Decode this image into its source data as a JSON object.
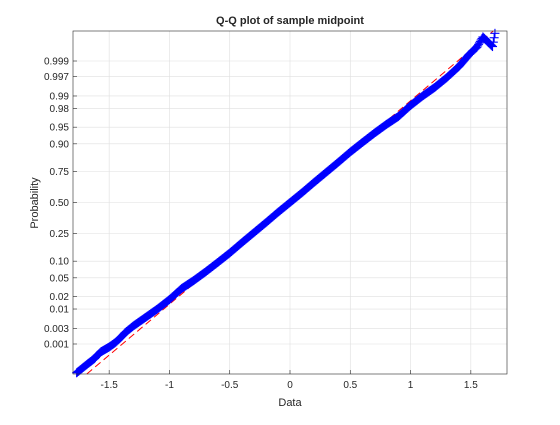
{
  "chart_data": {
    "type": "scatter",
    "title": "Q-Q plot  of sample midpoint",
    "xlabel": "Data",
    "ylabel": "Probability",
    "xlim": [
      -1.8,
      1.8
    ],
    "x_ticks": [
      -1.5,
      -1,
      -0.5,
      0,
      0.5,
      1,
      1.5
    ],
    "x_tick_labels": [
      "-1.5",
      "-1",
      "-0.5",
      "0",
      "0.5",
      "1",
      "1.5"
    ],
    "y_scale": "normal probability",
    "ylim": [
      9e-05,
      0.99991
    ],
    "y_ticks": [
      0.001,
      0.003,
      0.01,
      0.02,
      0.05,
      0.1,
      0.25,
      0.5,
      0.75,
      0.9,
      0.95,
      0.98,
      0.99,
      0.997,
      0.999
    ],
    "y_tick_labels": [
      "0.001",
      "0.003",
      "0.01",
      "0.02",
      "0.05",
      "0.10",
      "0.25",
      "0.50",
      "0.75",
      "0.90",
      "0.95",
      "0.98",
      "0.99",
      "0.997",
      "0.999"
    ],
    "grid": true,
    "marker": "+",
    "marker_color": "#0000ff",
    "reference_line": {
      "style": "dashed",
      "color": "#ff0000",
      "mean": 0,
      "sd": 0.45
    },
    "series": [
      {
        "points": [
          {
            "x": -1.77,
            "p": 0.0001
          },
          {
            "x": -1.68,
            "p": 0.00021
          },
          {
            "x": -1.62,
            "p": 0.00033
          },
          {
            "x": -1.6,
            "p": 0.00042
          },
          {
            "x": -1.57,
            "p": 0.00055
          },
          {
            "x": -1.5,
            "p": 0.0008
          },
          {
            "x": -1.45,
            "p": 0.0011
          },
          {
            "x": -1.42,
            "p": 0.0014
          },
          {
            "x": -1.39,
            "p": 0.0018
          },
          {
            "x": -1.37,
            "p": 0.0022
          },
          {
            "x": -1.3,
            "p": 0.0035
          },
          {
            "x": -1.2,
            "p": 0.006
          },
          {
            "x": -1.1,
            "p": 0.01
          },
          {
            "x": -1.0,
            "p": 0.017
          },
          {
            "x": -0.9,
            "p": 0.03
          },
          {
            "x": -0.8,
            "p": 0.044
          },
          {
            "x": -0.7,
            "p": 0.065
          },
          {
            "x": -0.6,
            "p": 0.095
          },
          {
            "x": -0.5,
            "p": 0.135
          },
          {
            "x": -0.4,
            "p": 0.19
          },
          {
            "x": -0.3,
            "p": 0.255
          },
          {
            "x": -0.2,
            "p": 0.33
          },
          {
            "x": -0.1,
            "p": 0.415
          },
          {
            "x": 0.0,
            "p": 0.5
          },
          {
            "x": 0.1,
            "p": 0.585
          },
          {
            "x": 0.2,
            "p": 0.67
          },
          {
            "x": 0.3,
            "p": 0.745
          },
          {
            "x": 0.4,
            "p": 0.81
          },
          {
            "x": 0.5,
            "p": 0.865
          },
          {
            "x": 0.6,
            "p": 0.905
          },
          {
            "x": 0.7,
            "p": 0.935
          },
          {
            "x": 0.8,
            "p": 0.956
          },
          {
            "x": 0.9,
            "p": 0.97
          },
          {
            "x": 1.0,
            "p": 0.983
          },
          {
            "x": 1.1,
            "p": 0.99
          },
          {
            "x": 1.2,
            "p": 0.994
          },
          {
            "x": 1.3,
            "p": 0.9968
          },
          {
            "x": 1.35,
            "p": 0.9978
          },
          {
            "x": 1.4,
            "p": 0.9985
          },
          {
            "x": 1.44,
            "p": 0.999
          },
          {
            "x": 1.48,
            "p": 0.99935
          },
          {
            "x": 1.52,
            "p": 0.99955
          },
          {
            "x": 1.55,
            "p": 0.99965
          },
          {
            "x": 1.6,
            "p": 0.99985
          },
          {
            "x": 1.68,
            "p": 0.99967
          },
          {
            "x": 1.7,
            "p": 0.99989
          }
        ]
      }
    ]
  }
}
